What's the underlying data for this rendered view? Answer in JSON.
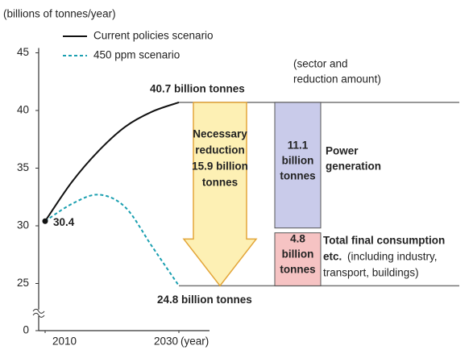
{
  "chart_data": {
    "type": "line",
    "y_axis_label": "(billions of tonnes/year)",
    "x_axis_label": "(year)",
    "x": [
      2010,
      2014,
      2018,
      2022,
      2026,
      2030
    ],
    "series": [
      {
        "name": "Current policies scenario",
        "color": "#111111",
        "dash": false,
        "values": [
          30.4,
          33.8,
          36.5,
          38.6,
          39.9,
          40.7
        ]
      },
      {
        "name": "450 ppm scenario",
        "color": "#1a9fb0",
        "dash": true,
        "values": [
          30.4,
          31.9,
          32.7,
          31.6,
          28.2,
          24.8
        ]
      }
    ],
    "xticks": [
      2010,
      2030
    ],
    "ylim": [
      24,
      45
    ],
    "yticks": [
      0,
      25,
      30,
      35,
      40,
      45
    ],
    "axis_break": true,
    "legend": "upper left",
    "annotations": {
      "start": "30.4",
      "top": "40.7 billion tonnes",
      "bottom": "24.8 billion tonnes",
      "note": [
        "(sector and",
        "reduction amount)"
      ]
    },
    "reduction": {
      "value": 15.9,
      "label_lines": [
        "Necessary",
        "reduction",
        "15.9 billion",
        "tonnes"
      ],
      "color": "#fdf0b4",
      "edge": "#e3a63a"
    },
    "segments": [
      {
        "value": 11.1,
        "value_label_lines": [
          "11.1",
          "billion",
          "tonnes"
        ],
        "name_lines": [
          "Power",
          "generation"
        ],
        "color": "#c9cbea",
        "edge": "#555555"
      },
      {
        "value": 4.8,
        "value_label_lines": [
          "4.8",
          "billion",
          "tonnes"
        ],
        "name_lines": [
          "Total final consumption",
          "etc.",
          "(including industry,",
          "transport, buildings)"
        ],
        "color": "#f6c3c3",
        "edge": "#555555"
      }
    ]
  }
}
